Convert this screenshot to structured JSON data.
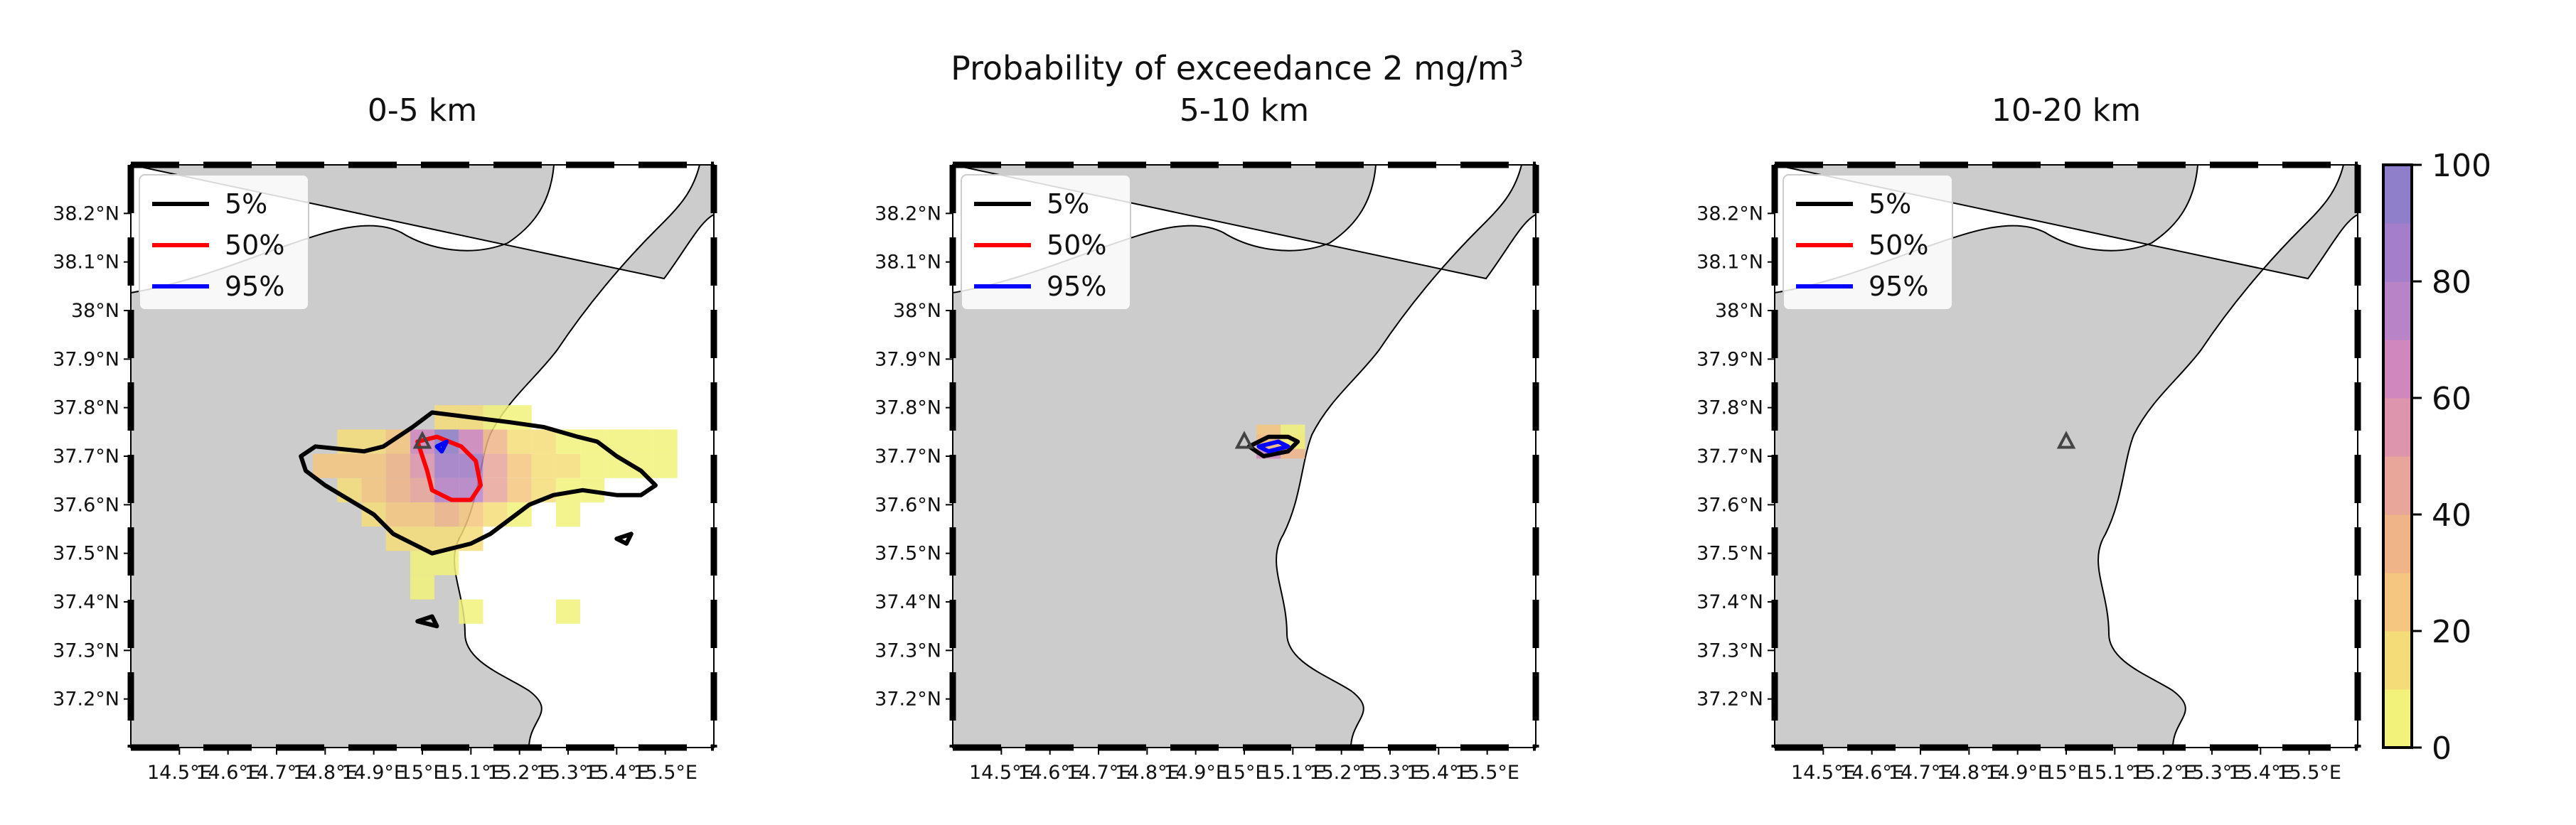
{
  "figure": {
    "suptitle": "Probability of exceedance 2 mg/m",
    "suptitle_sup": "3"
  },
  "chart_data": [
    {
      "type": "contour-map",
      "title": "0-5 km",
      "xlim": [
        14.4,
        15.6
      ],
      "ylim": [
        37.1,
        38.3
      ],
      "x_ticks": [
        "14.5°E",
        "14.6°E",
        "14.7°E",
        "14.8°E",
        "14.9°E",
        "15°E",
        "15.1°E",
        "15.2°E",
        "15.3°E",
        "15.4°E",
        "15.5°E"
      ],
      "y_ticks": [
        "37.2°N",
        "37.3°N",
        "37.4°N",
        "37.5°N",
        "37.6°N",
        "37.7°N",
        "37.8°N",
        "37.9°N",
        "38°N",
        "38.1°N",
        "38.2°N"
      ],
      "legend": {
        "position": "upper-left",
        "entries": [
          {
            "label": "5%",
            "color": "#000000"
          },
          {
            "label": "50%",
            "color": "#ff0000"
          },
          {
            "label": "95%",
            "color": "#0000ff"
          }
        ]
      },
      "vent": [
        15.0,
        37.73
      ],
      "probability_cells": [
        [
          14.8,
          37.68,
          20
        ],
        [
          14.85,
          37.68,
          25
        ],
        [
          14.9,
          37.68,
          25
        ],
        [
          14.95,
          37.68,
          30
        ],
        [
          15.0,
          37.68,
          55
        ],
        [
          15.05,
          37.68,
          80
        ],
        [
          15.1,
          37.68,
          85
        ],
        [
          15.15,
          37.68,
          45
        ],
        [
          15.2,
          37.68,
          25
        ],
        [
          15.25,
          37.68,
          15
        ],
        [
          15.3,
          37.68,
          10
        ],
        [
          15.35,
          37.68,
          8
        ],
        [
          15.4,
          37.68,
          5
        ],
        [
          15.45,
          37.68,
          3
        ],
        [
          15.5,
          37.68,
          2
        ],
        [
          14.85,
          37.63,
          18
        ],
        [
          14.9,
          37.63,
          22
        ],
        [
          14.95,
          37.63,
          30
        ],
        [
          15.0,
          37.63,
          45
        ],
        [
          15.05,
          37.63,
          75
        ],
        [
          15.1,
          37.63,
          70
        ],
        [
          15.15,
          37.63,
          40
        ],
        [
          15.2,
          37.63,
          20
        ],
        [
          15.25,
          37.63,
          12
        ],
        [
          15.3,
          37.63,
          8
        ],
        [
          15.35,
          37.63,
          5
        ],
        [
          14.9,
          37.58,
          15
        ],
        [
          14.95,
          37.58,
          20
        ],
        [
          15.0,
          37.58,
          25
        ],
        [
          15.05,
          37.58,
          30
        ],
        [
          15.1,
          37.58,
          25
        ],
        [
          15.15,
          37.58,
          15
        ],
        [
          15.2,
          37.58,
          8
        ],
        [
          15.3,
          37.58,
          4
        ],
        [
          14.95,
          37.53,
          10
        ],
        [
          15.0,
          37.53,
          15
        ],
        [
          15.05,
          37.53,
          15
        ],
        [
          15.1,
          37.53,
          10
        ],
        [
          15.0,
          37.48,
          8
        ],
        [
          15.05,
          37.48,
          6
        ],
        [
          15.0,
          37.43,
          3
        ],
        [
          15.1,
          37.38,
          2
        ],
        [
          15.3,
          37.38,
          2
        ],
        [
          15.0,
          37.73,
          60
        ],
        [
          15.05,
          37.73,
          95
        ],
        [
          15.1,
          37.73,
          60
        ],
        [
          15.15,
          37.73,
          30
        ],
        [
          15.2,
          37.73,
          15
        ],
        [
          15.25,
          37.73,
          10
        ],
        [
          15.3,
          37.73,
          6
        ],
        [
          15.35,
          37.73,
          4
        ],
        [
          15.4,
          37.73,
          3
        ],
        [
          15.45,
          37.73,
          2
        ],
        [
          15.5,
          37.73,
          2
        ],
        [
          15.05,
          37.78,
          15
        ],
        [
          15.1,
          37.78,
          12
        ],
        [
          15.15,
          37.78,
          8
        ],
        [
          15.2,
          37.78,
          4
        ],
        [
          14.9,
          37.73,
          15
        ],
        [
          14.85,
          37.73,
          10
        ],
        [
          14.95,
          37.73,
          25
        ]
      ],
      "contours": {
        "5%": [
          [
            [
              14.75,
              37.7
            ],
            [
              14.78,
              37.72
            ],
            [
              14.88,
              37.71
            ],
            [
              14.92,
              37.72
            ],
            [
              14.98,
              37.76
            ],
            [
              15.02,
              37.79
            ],
            [
              15.1,
              37.78
            ],
            [
              15.18,
              37.77
            ],
            [
              15.25,
              37.76
            ],
            [
              15.32,
              37.74
            ],
            [
              15.36,
              37.73
            ],
            [
              15.4,
              37.7
            ],
            [
              15.45,
              37.67
            ],
            [
              15.48,
              37.64
            ],
            [
              15.45,
              37.62
            ],
            [
              15.4,
              37.62
            ],
            [
              15.33,
              37.63
            ],
            [
              15.27,
              37.62
            ],
            [
              15.22,
              37.6
            ],
            [
              15.18,
              37.57
            ],
            [
              15.14,
              37.54
            ],
            [
              15.1,
              37.52
            ],
            [
              15.06,
              37.51
            ],
            [
              15.02,
              37.5
            ],
            [
              14.98,
              37.52
            ],
            [
              14.94,
              37.54
            ],
            [
              14.9,
              37.58
            ],
            [
              14.85,
              37.61
            ],
            [
              14.8,
              37.64
            ],
            [
              14.76,
              37.67
            ],
            [
              14.75,
              37.7
            ]
          ],
          [
            [
              14.99,
              37.36
            ],
            [
              15.02,
              37.37
            ],
            [
              15.03,
              37.35
            ],
            [
              14.99,
              37.36
            ]
          ],
          [
            [
              15.4,
              37.53
            ],
            [
              15.43,
              37.54
            ],
            [
              15.42,
              37.52
            ],
            [
              15.4,
              37.53
            ]
          ]
        ],
        "50%": [
          [
            [
              14.99,
              37.73
            ],
            [
              15.03,
              37.74
            ],
            [
              15.08,
              37.72
            ],
            [
              15.11,
              37.69
            ],
            [
              15.12,
              37.64
            ],
            [
              15.1,
              37.61
            ],
            [
              15.06,
              37.61
            ],
            [
              15.02,
              37.63
            ],
            [
              15.01,
              37.67
            ],
            [
              14.99,
              37.73
            ]
          ]
        ],
        "95%": [
          [
            [
              15.03,
              37.72
            ],
            [
              15.05,
              37.73
            ],
            [
              15.04,
              37.71
            ],
            [
              15.03,
              37.72
            ]
          ]
        ]
      }
    },
    {
      "type": "contour-map",
      "title": "5-10 km",
      "xlim": [
        14.4,
        15.6
      ],
      "ylim": [
        37.1,
        38.3
      ],
      "x_ticks": [
        "14.5°E",
        "14.6°E",
        "14.7°E",
        "14.8°E",
        "14.9°E",
        "15°E",
        "15.1°E",
        "15.2°E",
        "15.3°E",
        "15.4°E",
        "15.5°E"
      ],
      "y_ticks": [
        "37.2°N",
        "37.3°N",
        "37.4°N",
        "37.5°N",
        "37.6°N",
        "37.7°N",
        "37.8°N",
        "37.9°N",
        "38°N",
        "38.1°N",
        "38.2°N"
      ],
      "legend": {
        "position": "upper-left",
        "entries": [
          {
            "label": "5%",
            "color": "#000000"
          },
          {
            "label": "50%",
            "color": "#ff0000"
          },
          {
            "label": "95%",
            "color": "#0000ff"
          }
        ]
      },
      "vent": [
        15.0,
        37.73
      ],
      "probability_cells": [
        [
          15.05,
          37.72,
          60
        ],
        [
          15.1,
          37.72,
          30
        ],
        [
          15.05,
          37.74,
          20
        ],
        [
          15.1,
          37.74,
          8
        ]
      ],
      "contours": {
        "5%": [
          [
            [
              15.01,
              37.72
            ],
            [
              15.05,
              37.74
            ],
            [
              15.09,
              37.74
            ],
            [
              15.11,
              37.73
            ],
            [
              15.09,
              37.71
            ],
            [
              15.04,
              37.7
            ],
            [
              15.01,
              37.72
            ]
          ]
        ],
        "50%": [],
        "95%": [
          [
            [
              15.03,
              37.72
            ],
            [
              15.07,
              37.73
            ],
            [
              15.09,
              37.72
            ],
            [
              15.05,
              37.71
            ],
            [
              15.03,
              37.72
            ]
          ]
        ]
      }
    },
    {
      "type": "contour-map",
      "title": "10-20 km",
      "xlim": [
        14.4,
        15.6
      ],
      "ylim": [
        37.1,
        38.3
      ],
      "x_ticks": [
        "14.5°E",
        "14.6°E",
        "14.7°E",
        "14.8°E",
        "14.9°E",
        "15°E",
        "15.1°E",
        "15.2°E",
        "15.3°E",
        "15.4°E",
        "15.5°E"
      ],
      "y_ticks": [
        "37.2°N",
        "37.3°N",
        "37.4°N",
        "37.5°N",
        "37.6°N",
        "37.7°N",
        "37.8°N",
        "37.9°N",
        "38°N",
        "38.1°N",
        "38.2°N"
      ],
      "legend": {
        "position": "upper-left",
        "entries": [
          {
            "label": "5%",
            "color": "#000000"
          },
          {
            "label": "50%",
            "color": "#ff0000"
          },
          {
            "label": "95%",
            "color": "#0000ff"
          }
        ]
      },
      "vent": [
        15.0,
        37.73
      ],
      "probability_cells": [],
      "contours": {
        "5%": [],
        "50%": [],
        "95%": []
      }
    }
  ],
  "colorbar": {
    "position": "right",
    "range": [
      0,
      100
    ],
    "ticks": [
      "0",
      "20",
      "40",
      "60",
      "80",
      "100"
    ],
    "colors": [
      "#f2f27a",
      "#f4dd78",
      "#f4c67f",
      "#f0b489",
      "#e8a59a",
      "#dd95ad",
      "#cf87bd",
      "#b983c8",
      "#a47ecb",
      "#8f7ec9"
    ]
  },
  "map_style": {
    "land": "#cccccc",
    "sea": "#ffffff",
    "coast": "#000000"
  }
}
